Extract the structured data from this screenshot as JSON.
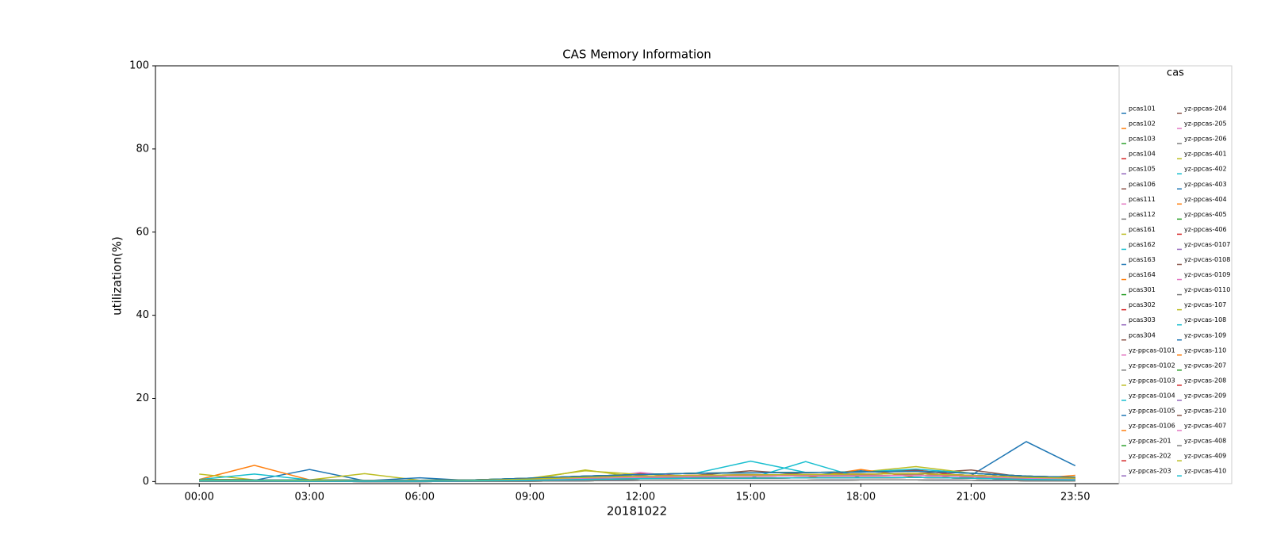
{
  "chart_data": {
    "type": "line",
    "title": "CAS Memory Information",
    "x_label": "20181022",
    "y_label": "utilization(%)",
    "legend_title": "cas",
    "legend": "right",
    "x": [
      0,
      90,
      180,
      270,
      360,
      450,
      540,
      630,
      720,
      810,
      900,
      990,
      1080,
      1170,
      1260,
      1350,
      1430
    ],
    "xlim": [
      -71.5,
      1501.5
    ],
    "xticks": [
      {
        "value": 0,
        "label": "00:00"
      },
      {
        "value": 180,
        "label": "03:00"
      },
      {
        "value": 360,
        "label": "06:00"
      },
      {
        "value": 540,
        "label": "09:00"
      },
      {
        "value": 720,
        "label": "12:00"
      },
      {
        "value": 900,
        "label": "15:00"
      },
      {
        "value": 1080,
        "label": "18:00"
      },
      {
        "value": 1260,
        "label": "21:00"
      },
      {
        "value": 1430,
        "label": "23:50"
      }
    ],
    "ylim": [
      -0.5,
      100
    ],
    "yticks": [
      0,
      20,
      40,
      60,
      80,
      100
    ],
    "series": [
      {
        "name": "pcas101",
        "color": "#1f77b4",
        "values": [
          0.4,
          0.3,
          2.9,
          0.2,
          0.2,
          0.3,
          0.6,
          1.0,
          1.3,
          1.5,
          1.6,
          1.7,
          1.8,
          1.9,
          1.5,
          9.6,
          3.8
        ]
      },
      {
        "name": "pcas102",
        "color": "#ff7f0e",
        "values": [
          0.5,
          3.9,
          0.4,
          0.3,
          0.3,
          0.4,
          0.8,
          1.3,
          1.7,
          2.0,
          2.1,
          2.2,
          2.3,
          2.5,
          2.0,
          1.3,
          1.0
        ]
      },
      {
        "name": "pcas103",
        "color": "#2ca02c",
        "values": [
          0.2,
          0.2,
          0.1,
          0.1,
          0.1,
          0.2,
          0.3,
          0.5,
          0.7,
          0.8,
          0.8,
          0.9,
          0.9,
          1.0,
          0.8,
          0.5,
          0.4
        ]
      },
      {
        "name": "pcas104",
        "color": "#d62728",
        "values": [
          0.3,
          0.2,
          0.2,
          0.2,
          0.2,
          0.2,
          0.5,
          0.8,
          1.9,
          1.2,
          1.3,
          1.4,
          2.4,
          2.8,
          1.2,
          0.8,
          0.6
        ]
      },
      {
        "name": "pcas105",
        "color": "#9467bd",
        "values": [
          0.1,
          0.1,
          0.1,
          0.0,
          0.0,
          0.1,
          0.1,
          0.2,
          0.3,
          0.3,
          0.3,
          0.3,
          0.4,
          0.4,
          0.3,
          0.2,
          0.2
        ]
      },
      {
        "name": "pcas106",
        "color": "#8c564b",
        "values": [
          0.4,
          0.3,
          0.3,
          0.2,
          0.2,
          0.3,
          0.6,
          1.0,
          1.3,
          1.5,
          2.6,
          1.7,
          1.8,
          1.9,
          2.8,
          1.0,
          0.8
        ]
      },
      {
        "name": "pcas111",
        "color": "#e377c2",
        "values": [
          0.2,
          0.2,
          0.1,
          0.1,
          0.1,
          0.2,
          0.3,
          0.5,
          2.2,
          0.8,
          0.8,
          0.9,
          0.9,
          1.0,
          0.8,
          0.5,
          0.4
        ]
      },
      {
        "name": "pcas112",
        "color": "#7f7f7f",
        "values": [
          0.3,
          0.2,
          0.2,
          0.2,
          0.2,
          0.2,
          0.5,
          0.8,
          1.0,
          1.2,
          1.3,
          1.4,
          1.4,
          1.5,
          1.2,
          0.8,
          0.6
        ]
      },
      {
        "name": "pcas161",
        "color": "#bcbd22",
        "values": [
          1.8,
          0.4,
          0.4,
          1.9,
          0.3,
          0.4,
          0.8,
          2.6,
          1.7,
          2.0,
          2.1,
          2.2,
          2.3,
          3.6,
          2.0,
          1.3,
          1.0
        ]
      },
      {
        "name": "pcas162",
        "color": "#17becf",
        "values": [
          0.5,
          1.8,
          0.4,
          0.3,
          0.3,
          0.4,
          0.8,
          1.3,
          1.7,
          2.0,
          4.9,
          2.2,
          2.3,
          3.0,
          2.0,
          1.3,
          1.0
        ]
      },
      {
        "name": "pcas163",
        "color": "#1f77b4",
        "values": [
          0.3,
          0.2,
          0.2,
          0.2,
          0.9,
          0.2,
          0.5,
          0.8,
          1.0,
          1.2,
          1.3,
          1.4,
          2.6,
          1.5,
          1.2,
          0.8,
          0.6
        ]
      },
      {
        "name": "pcas164",
        "color": "#ff7f0e",
        "values": [
          0.2,
          0.2,
          0.1,
          0.1,
          0.1,
          0.2,
          0.3,
          0.5,
          0.7,
          0.8,
          0.8,
          0.9,
          2.9,
          1.0,
          0.8,
          0.5,
          1.5
        ]
      },
      {
        "name": "pcas301",
        "color": "#2ca02c",
        "values": [
          0.4,
          0.3,
          0.3,
          0.2,
          0.2,
          0.3,
          0.6,
          1.0,
          1.3,
          1.5,
          1.6,
          1.7,
          1.8,
          1.9,
          1.5,
          1.0,
          0.8
        ]
      },
      {
        "name": "pcas302",
        "color": "#d62728",
        "values": [
          0.3,
          0.2,
          0.2,
          0.2,
          0.2,
          0.2,
          0.5,
          0.8,
          1.0,
          1.2,
          1.3,
          1.4,
          1.4,
          1.5,
          1.2,
          0.8,
          0.6
        ]
      },
      {
        "name": "pcas303",
        "color": "#9467bd",
        "values": [
          0.1,
          0.1,
          0.1,
          0.0,
          0.0,
          0.1,
          0.1,
          0.2,
          0.3,
          0.3,
          0.3,
          0.3,
          0.4,
          0.4,
          0.3,
          0.2,
          0.2
        ]
      },
      {
        "name": "pcas304",
        "color": "#8c564b",
        "values": [
          0.2,
          0.2,
          0.1,
          0.1,
          0.1,
          0.2,
          0.3,
          0.5,
          0.7,
          0.8,
          0.8,
          0.9,
          0.9,
          1.0,
          0.8,
          0.5,
          0.4
        ]
      },
      {
        "name": "yz-ppcas-0101",
        "color": "#e377c2",
        "values": [
          0.4,
          0.3,
          0.3,
          0.2,
          0.2,
          0.3,
          0.6,
          1.0,
          1.3,
          1.5,
          1.6,
          1.7,
          1.8,
          1.9,
          1.5,
          1.0,
          0.8
        ]
      },
      {
        "name": "yz-ppcas-0102",
        "color": "#7f7f7f",
        "values": [
          0.3,
          0.2,
          0.2,
          0.2,
          0.2,
          0.2,
          0.5,
          0.8,
          1.0,
          1.2,
          1.3,
          1.4,
          1.4,
          1.5,
          1.2,
          0.8,
          0.6
        ]
      },
      {
        "name": "yz-ppcas-0103",
        "color": "#bcbd22",
        "values": [
          0.1,
          0.1,
          0.1,
          0.0,
          0.0,
          0.1,
          0.1,
          0.2,
          0.3,
          0.3,
          0.3,
          0.3,
          0.4,
          0.4,
          0.3,
          0.2,
          0.2
        ]
      },
      {
        "name": "yz-ppcas-0104",
        "color": "#17becf",
        "values": [
          0.5,
          0.4,
          0.4,
          0.3,
          0.3,
          0.4,
          0.8,
          1.3,
          1.7,
          2.0,
          2.1,
          2.2,
          2.3,
          2.5,
          2.0,
          1.3,
          1.0
        ]
      },
      {
        "name": "yz-ppcas-0105",
        "color": "#1f77b4",
        "values": [
          0.2,
          0.2,
          0.1,
          0.1,
          0.1,
          0.2,
          0.3,
          0.5,
          0.7,
          0.8,
          0.8,
          0.9,
          0.9,
          1.0,
          0.8,
          0.5,
          0.4
        ]
      },
      {
        "name": "yz-ppcas-0106",
        "color": "#ff7f0e",
        "values": [
          0.3,
          0.2,
          0.2,
          0.2,
          0.2,
          0.2,
          0.5,
          0.8,
          1.0,
          1.2,
          1.3,
          1.4,
          1.4,
          1.5,
          1.2,
          0.8,
          0.6
        ]
      },
      {
        "name": "yz-ppcas-201",
        "color": "#2ca02c",
        "values": [
          0.1,
          0.1,
          0.1,
          0.0,
          0.0,
          0.1,
          0.1,
          0.2,
          0.3,
          0.3,
          0.3,
          0.3,
          0.4,
          0.4,
          0.3,
          0.2,
          0.2
        ]
      },
      {
        "name": "yz-ppcas-202",
        "color": "#d62728",
        "values": [
          0.4,
          0.3,
          0.3,
          0.2,
          0.2,
          0.3,
          0.6,
          1.0,
          1.3,
          1.5,
          1.6,
          1.7,
          1.8,
          1.9,
          1.5,
          1.0,
          0.8
        ]
      },
      {
        "name": "yz-ppcas-203",
        "color": "#9467bd",
        "values": [
          0.2,
          0.2,
          0.1,
          0.1,
          0.1,
          0.2,
          0.3,
          0.5,
          0.7,
          0.8,
          0.8,
          0.9,
          0.9,
          1.0,
          0.8,
          0.5,
          0.4
        ]
      },
      {
        "name": "yz-ppcas-204",
        "color": "#8c564b",
        "values": [
          0.5,
          0.4,
          0.4,
          0.3,
          0.3,
          0.4,
          0.8,
          1.3,
          1.7,
          2.0,
          2.1,
          2.2,
          2.3,
          2.5,
          2.0,
          1.3,
          1.0
        ]
      },
      {
        "name": "yz-ppcas-205",
        "color": "#e377c2",
        "values": [
          0.3,
          0.2,
          0.2,
          0.2,
          0.2,
          0.2,
          0.5,
          0.8,
          1.0,
          1.2,
          1.3,
          1.4,
          1.4,
          1.5,
          1.2,
          0.8,
          0.6
        ]
      },
      {
        "name": "yz-ppcas-206",
        "color": "#7f7f7f",
        "values": [
          0.1,
          0.1,
          0.1,
          0.0,
          0.0,
          0.1,
          0.1,
          0.2,
          0.3,
          0.3,
          0.3,
          0.3,
          0.4,
          0.4,
          0.3,
          0.2,
          0.2
        ]
      },
      {
        "name": "yz-ppcas-401",
        "color": "#bcbd22",
        "values": [
          0.4,
          0.3,
          0.3,
          0.2,
          0.2,
          0.3,
          0.6,
          1.0,
          1.3,
          1.5,
          1.6,
          1.7,
          1.8,
          1.9,
          1.5,
          1.0,
          0.8
        ]
      },
      {
        "name": "yz-ppcas-402",
        "color": "#17becf",
        "values": [
          0.2,
          0.2,
          0.1,
          0.1,
          0.1,
          0.2,
          0.3,
          0.5,
          0.7,
          0.8,
          0.8,
          4.8,
          0.9,
          1.0,
          0.8,
          0.5,
          0.4
        ]
      },
      {
        "name": "yz-ppcas-403",
        "color": "#1f77b4",
        "values": [
          0.3,
          0.2,
          0.2,
          0.2,
          0.2,
          0.2,
          0.5,
          0.8,
          1.0,
          1.2,
          1.3,
          1.4,
          1.4,
          1.5,
          1.2,
          0.8,
          0.6
        ]
      },
      {
        "name": "yz-ppcas-404",
        "color": "#ff7f0e",
        "values": [
          0.1,
          0.1,
          0.1,
          0.0,
          0.0,
          0.1,
          0.1,
          0.2,
          0.3,
          0.3,
          0.3,
          0.3,
          0.4,
          0.4,
          0.3,
          0.2,
          0.2
        ]
      },
      {
        "name": "yz-ppcas-405",
        "color": "#2ca02c",
        "values": [
          0.5,
          0.4,
          0.4,
          0.3,
          0.3,
          0.4,
          0.8,
          1.3,
          1.7,
          2.0,
          2.1,
          2.2,
          2.3,
          2.5,
          2.0,
          1.3,
          1.0
        ]
      },
      {
        "name": "yz-ppcas-406",
        "color": "#d62728",
        "values": [
          0.2,
          0.2,
          0.1,
          0.1,
          0.1,
          0.2,
          0.3,
          0.5,
          0.7,
          0.8,
          0.8,
          0.9,
          0.9,
          1.0,
          0.8,
          0.5,
          0.4
        ]
      },
      {
        "name": "yz-pvcas-0107",
        "color": "#9467bd",
        "values": [
          0.3,
          0.2,
          0.2,
          0.2,
          0.2,
          0.2,
          0.5,
          0.8,
          1.0,
          1.2,
          1.3,
          1.4,
          1.4,
          1.5,
          1.2,
          0.8,
          0.6
        ]
      },
      {
        "name": "yz-pvcas-0108",
        "color": "#8c564b",
        "values": [
          0.1,
          0.1,
          0.1,
          0.0,
          0.0,
          0.1,
          0.1,
          0.2,
          0.3,
          0.3,
          0.3,
          0.3,
          0.4,
          0.4,
          0.3,
          0.2,
          0.2
        ]
      },
      {
        "name": "yz-pvcas-0109",
        "color": "#e377c2",
        "values": [
          0.4,
          0.3,
          0.3,
          0.2,
          0.2,
          0.3,
          0.6,
          1.0,
          1.3,
          1.5,
          1.6,
          1.7,
          1.8,
          1.9,
          1.5,
          1.0,
          0.8
        ]
      },
      {
        "name": "yz-pvcas-0110",
        "color": "#7f7f7f",
        "values": [
          0.2,
          0.2,
          0.1,
          0.1,
          0.1,
          0.2,
          0.3,
          0.5,
          0.7,
          0.8,
          0.8,
          0.9,
          0.9,
          1.0,
          0.8,
          0.5,
          0.4
        ]
      },
      {
        "name": "yz-pvcas-107",
        "color": "#bcbd22",
        "values": [
          0.3,
          0.2,
          0.2,
          0.2,
          0.2,
          0.2,
          0.5,
          2.8,
          1.0,
          1.2,
          1.3,
          1.4,
          1.4,
          1.5,
          1.2,
          0.8,
          0.6
        ]
      },
      {
        "name": "yz-pvcas-108",
        "color": "#17becf",
        "values": [
          0.1,
          0.1,
          0.1,
          0.0,
          0.0,
          0.1,
          0.1,
          0.2,
          0.3,
          0.3,
          0.3,
          0.3,
          0.4,
          0.4,
          0.3,
          0.2,
          0.2
        ]
      },
      {
        "name": "yz-pvcas-109",
        "color": "#1f77b4",
        "values": [
          0.5,
          0.4,
          0.4,
          0.3,
          0.3,
          0.4,
          0.8,
          1.3,
          1.7,
          2.0,
          2.1,
          2.2,
          2.3,
          2.5,
          2.0,
          1.3,
          1.0
        ]
      },
      {
        "name": "yz-pvcas-110",
        "color": "#ff7f0e",
        "values": [
          0.2,
          0.2,
          0.1,
          0.1,
          0.1,
          0.2,
          0.3,
          0.5,
          0.7,
          0.8,
          0.8,
          0.9,
          0.9,
          1.0,
          0.8,
          0.5,
          0.4
        ]
      },
      {
        "name": "yz-pvcas-207",
        "color": "#2ca02c",
        "values": [
          0.3,
          0.2,
          0.2,
          0.2,
          0.2,
          0.2,
          0.5,
          0.8,
          1.0,
          1.2,
          1.3,
          1.4,
          1.4,
          1.5,
          1.2,
          0.8,
          0.6
        ]
      },
      {
        "name": "yz-pvcas-208",
        "color": "#d62728",
        "values": [
          0.4,
          0.3,
          0.3,
          0.2,
          0.2,
          0.3,
          0.6,
          1.0,
          1.3,
          1.5,
          1.6,
          1.7,
          1.8,
          1.9,
          1.5,
          1.0,
          0.8
        ]
      },
      {
        "name": "yz-pvcas-209",
        "color": "#9467bd",
        "values": [
          0.1,
          0.1,
          0.1,
          0.0,
          0.0,
          0.1,
          0.1,
          0.2,
          0.3,
          0.3,
          0.3,
          0.3,
          0.4,
          0.4,
          0.3,
          0.2,
          0.2
        ]
      },
      {
        "name": "yz-pvcas-210",
        "color": "#8c564b",
        "values": [
          0.2,
          0.2,
          0.1,
          0.1,
          0.1,
          0.2,
          0.3,
          0.5,
          0.7,
          0.8,
          0.8,
          0.9,
          0.9,
          1.0,
          0.8,
          0.5,
          0.4
        ]
      },
      {
        "name": "yz-pvcas-407",
        "color": "#e377c2",
        "values": [
          0.3,
          0.2,
          0.2,
          0.2,
          0.2,
          0.2,
          0.5,
          0.8,
          1.0,
          1.2,
          1.3,
          1.4,
          1.4,
          1.5,
          1.2,
          0.8,
          0.6
        ]
      },
      {
        "name": "yz-pvcas-408",
        "color": "#7f7f7f",
        "values": [
          0.1,
          0.1,
          0.1,
          0.0,
          0.0,
          0.1,
          0.1,
          0.2,
          0.3,
          0.3,
          0.3,
          0.3,
          0.4,
          0.4,
          0.3,
          0.2,
          0.2
        ]
      },
      {
        "name": "yz-pvcas-409",
        "color": "#bcbd22",
        "values": [
          0.4,
          0.3,
          0.3,
          0.2,
          0.2,
          0.3,
          0.6,
          1.0,
          1.3,
          1.5,
          1.6,
          1.7,
          1.8,
          1.9,
          1.5,
          1.0,
          0.8
        ]
      },
      {
        "name": "yz-pvcas-410",
        "color": "#17becf",
        "values": [
          0.2,
          0.2,
          0.1,
          0.1,
          0.1,
          0.2,
          0.3,
          0.5,
          0.7,
          0.8,
          0.8,
          0.9,
          0.9,
          1.0,
          0.8,
          0.5,
          0.4
        ]
      }
    ]
  }
}
